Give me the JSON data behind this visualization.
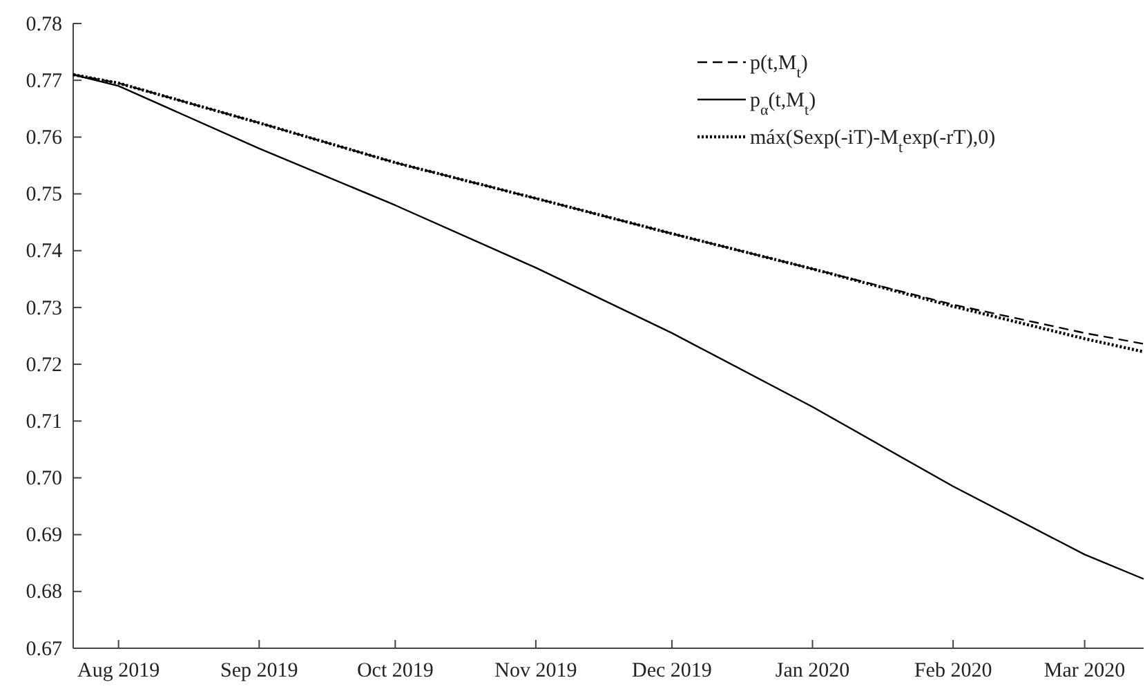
{
  "chart_data": {
    "type": "line",
    "x": [
      "2019-07-22",
      "2019-08-01",
      "2019-09-01",
      "2019-10-01",
      "2019-11-01",
      "2019-12-01",
      "2020-01-01",
      "2020-02-01",
      "2020-03-01",
      "2020-03-14"
    ],
    "series": [
      {
        "name": "p(t,M$_{t}$)",
        "color": "#000000",
        "line_style": "dashed",
        "values": [
          0.771,
          0.7695,
          0.7625,
          0.7555,
          0.7492,
          0.743,
          0.7368,
          0.7305,
          0.7255,
          0.7236
        ]
      },
      {
        "name": "p$_{α}$(t,M$_{t}$)",
        "color": "#000000",
        "line_style": "solid",
        "values": [
          0.771,
          0.769,
          0.758,
          0.748,
          0.737,
          0.7255,
          0.7125,
          0.6985,
          0.6865,
          0.6822
        ]
      },
      {
        "name": "máx(Sexp(-iT)-M$_{t}$exp(-rT),0)",
        "color": "#000000",
        "line_style": "dotted",
        "values": [
          0.771,
          0.7695,
          0.7625,
          0.7555,
          0.7492,
          0.743,
          0.7368,
          0.7302,
          0.7245,
          0.7222
        ]
      }
    ],
    "xlim": [
      "2019-07-22",
      "2020-03-14"
    ],
    "xticks": [
      {
        "value": "2019-08-01",
        "label": "Aug 2019"
      },
      {
        "value": "2019-09-01",
        "label": "Sep 2019"
      },
      {
        "value": "2019-10-01",
        "label": "Oct 2019"
      },
      {
        "value": "2019-11-01",
        "label": "Nov 2019"
      },
      {
        "value": "2019-12-01",
        "label": "Dec 2019"
      },
      {
        "value": "2020-01-01",
        "label": "Jan 2020"
      },
      {
        "value": "2020-02-01",
        "label": "Feb 2020"
      },
      {
        "value": "2020-03-01",
        "label": "Mar 2020"
      }
    ],
    "ylim": [
      0.67,
      0.78
    ],
    "yticks": [
      {
        "value": 0.67,
        "label": "0.67"
      },
      {
        "value": 0.68,
        "label": "0.68"
      },
      {
        "value": 0.69,
        "label": "0.69"
      },
      {
        "value": 0.7,
        "label": "0.70"
      },
      {
        "value": 0.71,
        "label": "0.71"
      },
      {
        "value": 0.72,
        "label": "0.72"
      },
      {
        "value": 0.73,
        "label": "0.73"
      },
      {
        "value": 0.74,
        "label": "0.74"
      },
      {
        "value": 0.75,
        "label": "0.75"
      },
      {
        "value": 0.76,
        "label": "0.76"
      },
      {
        "value": 0.77,
        "label": "0.77"
      },
      {
        "value": 0.78,
        "label": "0.78"
      }
    ],
    "grid": false,
    "legend": "top right"
  }
}
